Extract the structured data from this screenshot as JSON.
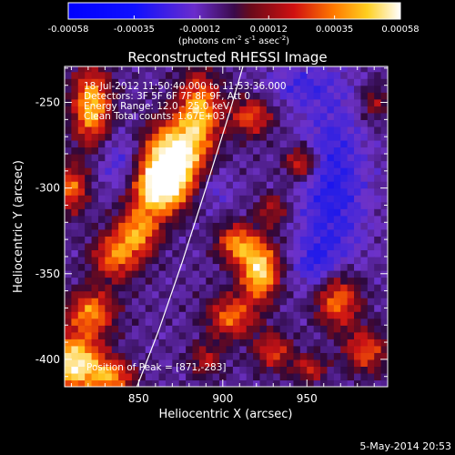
{
  "chart_data": {
    "type": "heatmap",
    "title": "Reconstructed RHESSI Image",
    "xlabel": "Heliocentric X (arcsec)",
    "ylabel": "Heliocentric Y (arcsec)",
    "xlim": [
      806,
      998
    ],
    "ylim": [
      -416,
      -229
    ],
    "x_ticks": [
      850,
      900,
      950
    ],
    "y_ticks": [
      -250,
      -300,
      -350,
      -400
    ],
    "colorbar": {
      "min": -0.00058,
      "max": 0.00058,
      "tick_values": [
        -0.00058,
        -0.00035,
        -0.00012,
        0.00012,
        0.00035,
        0.00058
      ],
      "tick_labels": [
        "-0.00058",
        "-0.00035",
        "-0.00012",
        "0.00012",
        "0.00035",
        "0.00058"
      ],
      "unit_label": {
        "base": "(photons cm",
        "exp1": "-2",
        "mid1": " s",
        "exp2": "-1",
        "mid2": " asec",
        "exp3": "-2",
        "tail": ")"
      }
    },
    "annotations": {
      "time": "18-Jul-2012 11:50:40.000 to 11:53:36.000",
      "detectors": "Detectors: 3F 5F 6F 7F 8F 9F, Att 0",
      "energy": "Energy Range: 12.0 - 25.0 keV",
      "clean": "Clean    Total counts: 1.67E+03",
      "peak": "Position of Peak = [871,-283]"
    },
    "peak_position": [
      871,
      -283
    ],
    "limb_points": [
      [
        849,
        -416
      ],
      [
        862,
        -383
      ],
      [
        876,
        -343
      ],
      [
        890,
        -300
      ],
      [
        904,
        -256
      ],
      [
        912,
        -229
      ]
    ],
    "emission_sources": [
      {
        "x": 870,
        "y": -282,
        "sx": 12,
        "sy": 14,
        "amp": 1.0
      },
      {
        "x": 862,
        "y": -300,
        "sx": 11,
        "sy": 11,
        "amp": 0.85
      },
      {
        "x": 886,
        "y": -255,
        "sx": 9,
        "sy": 16,
        "amp": 0.7
      },
      {
        "x": 850,
        "y": -325,
        "sx": 9,
        "sy": 10,
        "amp": 0.6
      },
      {
        "x": 822,
        "y": -252,
        "sx": 8,
        "sy": 16,
        "amp": 0.75
      },
      {
        "x": 810,
        "y": -300,
        "sx": 7,
        "sy": 10,
        "amp": 0.55
      },
      {
        "x": 836,
        "y": -340,
        "sx": 10,
        "sy": 10,
        "amp": 0.55
      },
      {
        "x": 822,
        "y": -372,
        "sx": 10,
        "sy": 9,
        "amp": 0.6
      },
      {
        "x": 812,
        "y": -402,
        "sx": 12,
        "sy": 12,
        "amp": 0.9
      },
      {
        "x": 835,
        "y": -410,
        "sx": 9,
        "sy": 7,
        "amp": 0.55
      },
      {
        "x": 922,
        "y": -348,
        "sx": 8,
        "sy": 12,
        "amp": 0.85
      },
      {
        "x": 908,
        "y": -332,
        "sx": 8,
        "sy": 8,
        "amp": 0.6
      },
      {
        "x": 905,
        "y": -375,
        "sx": 10,
        "sy": 9,
        "amp": 0.55
      },
      {
        "x": 930,
        "y": -395,
        "sx": 8,
        "sy": 8,
        "amp": 0.45
      },
      {
        "x": 968,
        "y": -365,
        "sx": 10,
        "sy": 12,
        "amp": 0.65
      },
      {
        "x": 985,
        "y": -395,
        "sx": 9,
        "sy": 9,
        "amp": 0.5
      },
      {
        "x": 952,
        "y": -405,
        "sx": 7,
        "sy": 6,
        "amp": 0.4
      },
      {
        "x": 947,
        "y": -285,
        "sx": 7,
        "sy": 7,
        "amp": 0.55
      },
      {
        "x": 917,
        "y": -258,
        "sx": 9,
        "sy": 8,
        "amp": 0.5
      },
      {
        "x": 930,
        "y": -312,
        "sx": 7,
        "sy": 7,
        "amp": 0.35
      },
      {
        "x": 890,
        "y": -400,
        "sx": 7,
        "sy": 7,
        "amp": 0.35
      },
      {
        "x": 990,
        "y": -250,
        "sx": 6,
        "sy": 8,
        "amp": 0.3
      }
    ],
    "negative_regions": [
      {
        "x": 965,
        "y": -300,
        "sx": 14,
        "sy": 40,
        "amp": 0.5
      },
      {
        "x": 955,
        "y": -345,
        "sx": 8,
        "sy": 10,
        "amp": 0.35
      },
      {
        "x": 840,
        "y": -285,
        "sx": 10,
        "sy": 12,
        "amp": 0.35
      },
      {
        "x": 895,
        "y": -300,
        "sx": 8,
        "sy": 8,
        "amp": 0.25
      },
      {
        "x": 945,
        "y": -240,
        "sx": 14,
        "sy": 8,
        "amp": 0.3
      }
    ]
  },
  "footer": {
    "timestamp": "5-May-2014 20:53"
  }
}
